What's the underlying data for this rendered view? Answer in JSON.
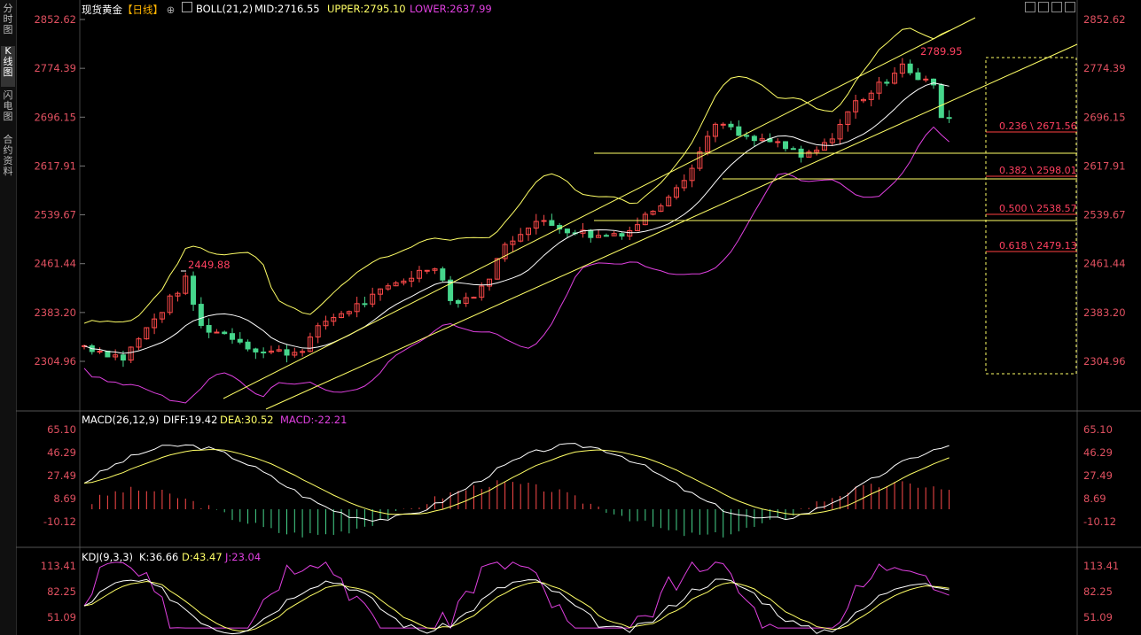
{
  "sidebar": {
    "tabs": [
      {
        "label": "分时图",
        "active": false
      },
      {
        "label": "K线图",
        "active": true
      },
      {
        "label": "闪电图",
        "active": false
      },
      {
        "label": "合约资料",
        "active": false
      }
    ]
  },
  "header": {
    "instrument": "现货黄金",
    "period": "【日线】",
    "boll_label": "BOLL(21,2)",
    "mid": "MID:2716.55",
    "upper": "UPPER:2795.10",
    "lower": "LOWER:2637.99"
  },
  "macd_header": {
    "label": "MACD(26,12,9)",
    "diff": "DIFF:19.42",
    "dea": "DEA:30.52",
    "macd": "MACD:-22.21"
  },
  "kdj_header": {
    "label": "KDJ(9,3,3)",
    "k": "K:36.66",
    "d": "D:43.47",
    "j": "J:23.04"
  },
  "colors": {
    "up": "#ff4a4a",
    "down": "#46d68c",
    "mid": "#ffffff",
    "upper": "#ffff66",
    "lower": "#e040e0",
    "price_axis": "#e05060",
    "label": "#ff4060"
  },
  "chart_data": [
    {
      "type": "candlestick",
      "title": "现货黄金【日线】",
      "ylim": [
        2280,
        2860
      ],
      "yticks": [
        "2852.62",
        "2774.39",
        "2696.15",
        "2617.91",
        "2539.67",
        "2461.44",
        "2383.20",
        "2304.96"
      ],
      "high_label": "2449.88",
      "peak_label": "2789.95",
      "fibonacci": [
        {
          "label": "0.236 \\ 2671.56",
          "value": 2671.56
        },
        {
          "label": "0.382 \\ 2598.01",
          "value": 2598.01
        },
        {
          "label": "0.500 \\ 2538.57",
          "value": 2538.57
        },
        {
          "label": "0.618 \\ 2479.13",
          "value": 2479.13
        }
      ],
      "series": [
        {
          "name": "BOLL(21,2)",
          "values": []
        }
      ]
    },
    {
      "type": "bar",
      "title": "MACD(26,12,9)",
      "yticks": [
        "65.10",
        "46.29",
        "27.49",
        "8.69",
        "-10.12"
      ],
      "ylim": [
        -18,
        72
      ]
    },
    {
      "type": "line",
      "title": "KDJ(9,3,3)",
      "yticks": [
        "113.41",
        "82.25",
        "51.09"
      ],
      "ylim": [
        40,
        118
      ]
    }
  ]
}
